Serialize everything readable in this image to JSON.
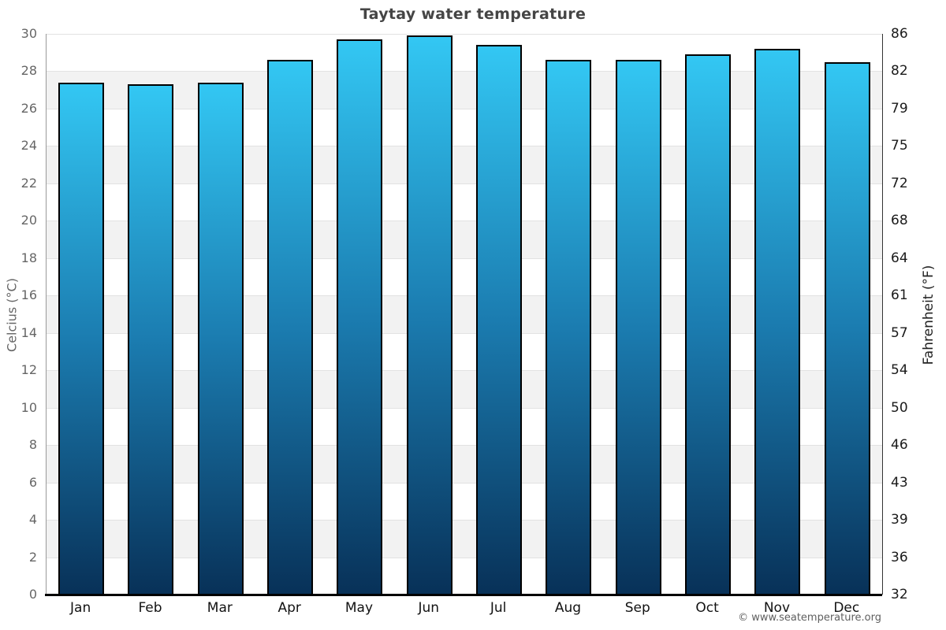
{
  "chart_data": {
    "type": "bar",
    "title": "Taytay water temperature",
    "categories": [
      "Jan",
      "Feb",
      "Mar",
      "Apr",
      "May",
      "Jun",
      "Jul",
      "Aug",
      "Sep",
      "Oct",
      "Nov",
      "Dec"
    ],
    "values": [
      27.4,
      27.3,
      27.4,
      28.6,
      29.7,
      29.9,
      29.4,
      28.6,
      28.6,
      28.9,
      29.2,
      28.5
    ],
    "xlabel": "",
    "ylabel_left": "Celcius (°C)",
    "ylabel_right": "Fahrenheit (°F)",
    "ylim_celsius": [
      0,
      30
    ],
    "yticks_celsius": [
      0,
      2,
      4,
      6,
      8,
      10,
      12,
      14,
      16,
      18,
      20,
      22,
      24,
      26,
      28,
      30
    ],
    "yticks_fahrenheit": [
      32,
      36,
      39,
      43,
      46,
      50,
      54,
      57,
      61,
      64,
      68,
      72,
      75,
      79,
      82,
      86
    ],
    "grid": "horizontal gridlines every 2°C with alternating white/gray bands",
    "legend": "none",
    "colors": {
      "bar_gradient_top": "#33c7f3",
      "bar_gradient_mid": "#1b7cb0",
      "bar_gradient_bottom": "#083158",
      "bar_border": "#000000",
      "band_white": "#ffffff",
      "band_gray": "#f2f2f2",
      "gridline": "#e2e2e2",
      "axis_bottom": "#000000",
      "title_color": "#454545"
    }
  },
  "footer": {
    "copyright": "© www.seatemperature.org"
  }
}
